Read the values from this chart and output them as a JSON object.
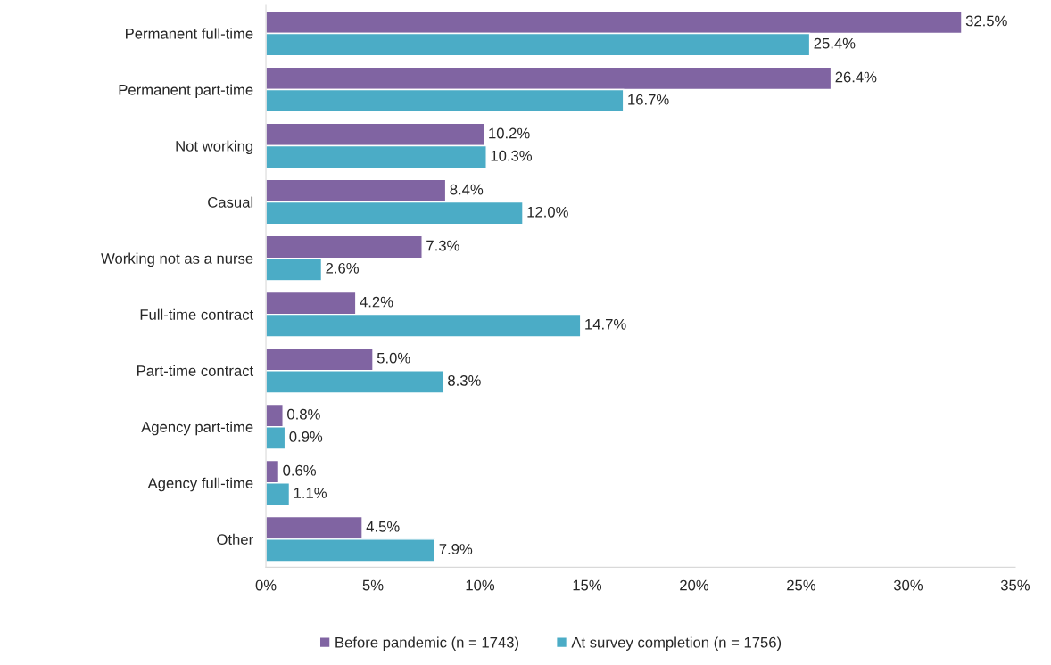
{
  "chart_data": {
    "type": "bar",
    "orientation": "horizontal",
    "categories": [
      "Permanent full-time",
      "Permanent part-time",
      "Not working",
      "Casual",
      "Working not as a nurse",
      "Full-time contract",
      "Part-time contract",
      "Agency part-time",
      "Agency full-time",
      "Other"
    ],
    "series": [
      {
        "name": "Before pandemic (n = 1743)",
        "color": "#8064a2",
        "values": [
          32.5,
          26.4,
          10.2,
          8.4,
          7.3,
          4.2,
          5.0,
          0.8,
          0.6,
          4.5
        ],
        "value_labels": [
          "32.5%",
          "26.4%",
          "10.2%",
          "8.4%",
          "7.3%",
          "4.2%",
          "5.0%",
          "0.8%",
          "0.6%",
          "4.5%"
        ]
      },
      {
        "name": "At survey completion (n = 1756)",
        "color": "#4bacc6",
        "values": [
          25.4,
          16.7,
          10.3,
          12.0,
          2.6,
          14.7,
          8.3,
          0.9,
          1.1,
          7.9
        ],
        "value_labels": [
          "25.4%",
          "16.7%",
          "10.3%",
          "12.0%",
          "2.6%",
          "14.7%",
          "8.3%",
          "0.9%",
          "1.1%",
          "7.9%"
        ]
      }
    ],
    "xlim": [
      0,
      35
    ],
    "xticks": [
      {
        "value": 0,
        "label": "0%"
      },
      {
        "value": 5,
        "label": "5%"
      },
      {
        "value": 10,
        "label": "10%"
      },
      {
        "value": 15,
        "label": "15%"
      },
      {
        "value": 20,
        "label": "20%"
      },
      {
        "value": 25,
        "label": "25%"
      },
      {
        "value": 30,
        "label": "30%"
      },
      {
        "value": 35,
        "label": "35%"
      }
    ],
    "grid": false,
    "legend": "bottom"
  }
}
